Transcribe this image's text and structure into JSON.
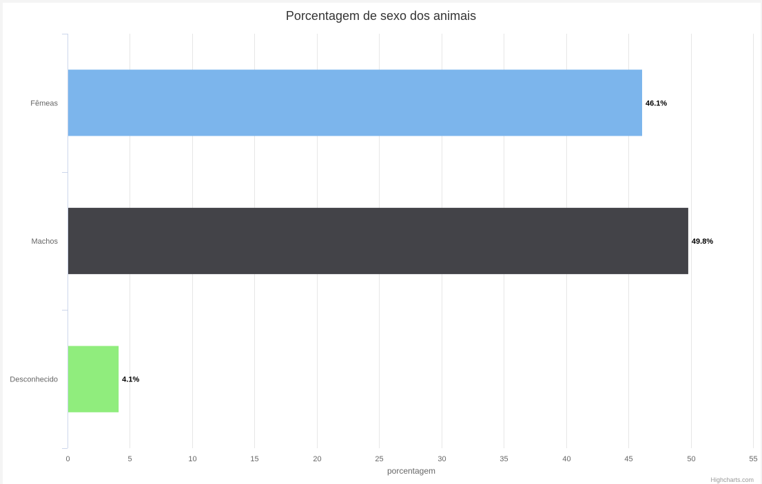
{
  "chart_data": {
    "type": "bar",
    "orientation": "horizontal",
    "title": "Porcentagem de sexo dos animais",
    "xlabel": "porcentagem",
    "categories": [
      "Fêmeas",
      "Machos",
      "Desconhecido"
    ],
    "values": [
      46.1,
      49.8,
      4.1
    ],
    "data_labels": [
      "46.1%",
      "49.8%",
      "4.1%"
    ],
    "colors": [
      "#7cb5ec",
      "#434348",
      "#90ed7d"
    ],
    "xlim": [
      0,
      55
    ],
    "ticks": [
      0,
      5,
      10,
      15,
      20,
      25,
      30,
      35,
      40,
      45,
      50,
      55
    ],
    "tick_labels": [
      "0",
      "5",
      "10",
      "15",
      "20",
      "25",
      "30",
      "35",
      "40",
      "45",
      "50",
      "55"
    ],
    "grid": true,
    "legend": "none"
  },
  "credits": "Highcharts.com"
}
